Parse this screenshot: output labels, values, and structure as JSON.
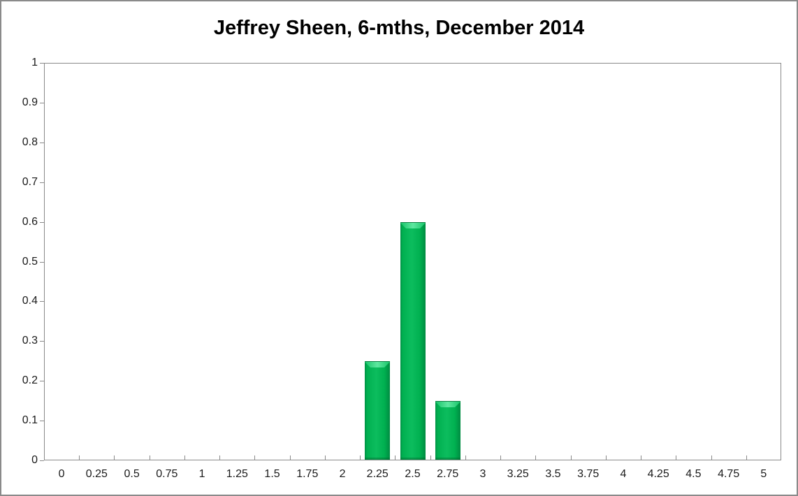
{
  "chart_data": {
    "type": "bar",
    "title": "Jeffrey Sheen, 6-mths, December 2014",
    "categories": [
      "0",
      "0.25",
      "0.5",
      "0.75",
      "1",
      "1.25",
      "1.5",
      "1.75",
      "2",
      "2.25",
      "2.5",
      "2.75",
      "3",
      "3.25",
      "3.5",
      "3.75",
      "4",
      "4.25",
      "4.5",
      "4.75",
      "5"
    ],
    "values": [
      0,
      0,
      0,
      0,
      0,
      0,
      0,
      0,
      0,
      0.25,
      0.6,
      0.15,
      0,
      0,
      0,
      0,
      0,
      0,
      0,
      0,
      0
    ],
    "xlabel": "",
    "ylabel": "",
    "ylim": [
      0,
      1
    ],
    "ytick_step": 0.1,
    "yticks": [
      "0",
      "0.1",
      "0.2",
      "0.3",
      "0.4",
      "0.5",
      "0.6",
      "0.7",
      "0.8",
      "0.9",
      "1"
    ],
    "grid": "off",
    "legend": "none",
    "colors": {
      "bar_fill": "#00B050",
      "bar_highlight": "#5DE79F",
      "bar_edge": "#0A7F41",
      "axis": "#898989",
      "tick_text": "#1A1A1A",
      "title_text": "#000000",
      "frame_border": "#8A8A8A",
      "background": "#FFFFFF"
    }
  }
}
